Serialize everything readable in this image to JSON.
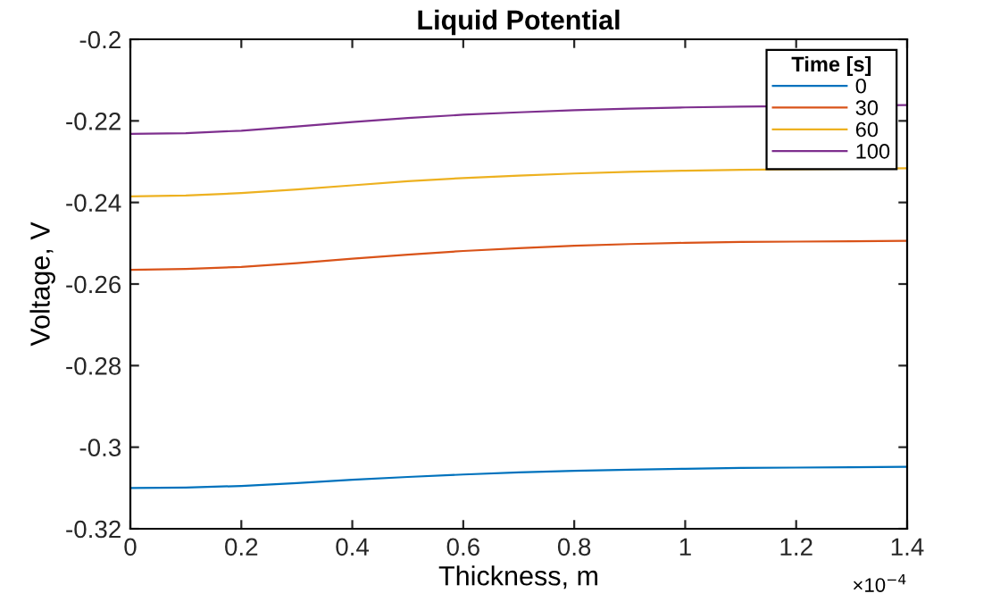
{
  "chart_data": {
    "type": "line",
    "title": "Liquid Potential",
    "xlabel": "Thickness, m",
    "ylabel": "Voltage, V",
    "legend_title": "Time [s]",
    "x": [
      0,
      0.1,
      0.2,
      0.3,
      0.4,
      0.5,
      0.6,
      0.7,
      0.8,
      0.9,
      1,
      1.1,
      1.2,
      1.3,
      1.4
    ],
    "series": [
      {
        "name": "0",
        "color": "#0072bd",
        "values": [
          -0.31,
          -0.3099,
          -0.3095,
          -0.3088,
          -0.308,
          -0.3073,
          -0.3067,
          -0.3062,
          -0.3058,
          -0.3055,
          -0.3053,
          -0.3051,
          -0.305,
          -0.3049,
          -0.3048
        ]
      },
      {
        "name": "30",
        "color": "#d95319",
        "values": [
          -0.2565,
          -0.2563,
          -0.2558,
          -0.2549,
          -0.2538,
          -0.2528,
          -0.2519,
          -0.2512,
          -0.2506,
          -0.2502,
          -0.2499,
          -0.2497,
          -0.2496,
          -0.2495,
          -0.2494
        ]
      },
      {
        "name": "60",
        "color": "#edb120",
        "x": [
          0,
          0.1,
          0.2,
          0.3,
          0.4,
          0.5,
          0.6,
          0.7,
          0.8,
          0.9,
          1,
          1.1,
          1.4
        ],
        "values": [
          -0.2385,
          -0.2383,
          -0.2377,
          -0.2368,
          -0.2358,
          -0.2348,
          -0.234,
          -0.2334,
          -0.2329,
          -0.2325,
          -0.2322,
          -0.232,
          -0.2316
        ]
      },
      {
        "name": "100",
        "color": "#7e2f8e",
        "x": [
          0,
          0.1,
          0.2,
          0.3,
          0.4,
          0.5,
          0.6,
          0.7,
          0.8,
          0.9,
          1,
          1.1,
          1.4
        ],
        "values": [
          -0.2232,
          -0.223,
          -0.2224,
          -0.2214,
          -0.2203,
          -0.2193,
          -0.2185,
          -0.2179,
          -0.2174,
          -0.217,
          -0.2167,
          -0.2165,
          -0.2161
        ]
      }
    ],
    "xlim": [
      0,
      1.4
    ],
    "xticks": [
      0,
      0.2,
      0.4,
      0.6,
      0.8,
      1,
      1.2,
      1.4
    ],
    "ylim": [
      -0.32,
      -0.2
    ],
    "yticks": [
      -0.32,
      -0.3,
      -0.28,
      -0.26,
      -0.24,
      -0.22,
      -0.2
    ],
    "annotations": [
      "×10$^{−4}$"
    ],
    "legend": "top right",
    "grid": false,
    "marker": "none",
    "line_style": "solid"
  }
}
